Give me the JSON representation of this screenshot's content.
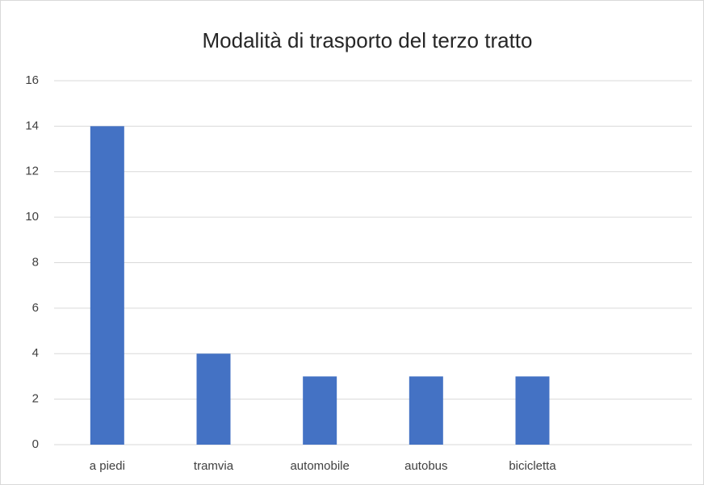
{
  "chart_data": {
    "type": "bar",
    "title": "Modalità di trasporto del terzo tratto",
    "categories": [
      "a piedi",
      "tramvia",
      "automobile",
      "autobus",
      "bicicletta",
      null
    ],
    "values": [
      14,
      4,
      3,
      3,
      3,
      null
    ],
    "color": "#4472c4",
    "ylim": [
      0,
      16
    ],
    "yticks": [
      0,
      2,
      4,
      6,
      8,
      10,
      12,
      14,
      16
    ],
    "grid": true
  }
}
